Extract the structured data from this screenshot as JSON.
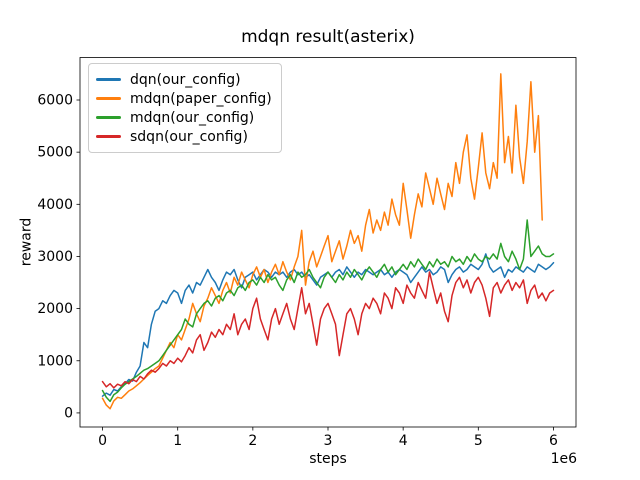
{
  "chart_data": {
    "type": "line",
    "title": "mdqn result(asterix)",
    "xlabel": "steps",
    "ylabel": "reward",
    "x_unit": "1e6",
    "grid": false,
    "legend_position": "upper left",
    "xlim": [
      -0.3,
      6.3
    ],
    "ylim": [
      -270,
      6815
    ],
    "xticks": [
      0,
      1,
      2,
      3,
      4,
      5,
      6
    ],
    "yticks": [
      0,
      1000,
      2000,
      3000,
      4000,
      5000,
      6000
    ],
    "x_start": 0,
    "x_step": 0.05,
    "series": [
      {
        "name": "dqn(our_config)",
        "color": "#1f77b4",
        "values": [
          320,
          380,
          340,
          450,
          420,
          500,
          560,
          640,
          610,
          780,
          900,
          1350,
          1250,
          1700,
          1950,
          2000,
          2150,
          2100,
          2250,
          2350,
          2300,
          2100,
          2350,
          2450,
          2300,
          2500,
          2450,
          2600,
          2750,
          2600,
          2500,
          2350,
          2550,
          2700,
          2650,
          2750,
          2550,
          2400,
          2600,
          2650,
          2700,
          2550,
          2650,
          2750,
          2700,
          2600,
          2700,
          2650,
          2700,
          2600,
          2700,
          2750,
          2650,
          2700,
          2600,
          2650,
          2550,
          2450,
          2600,
          2650,
          2700,
          2600,
          2700,
          2750,
          2650,
          2800,
          2700,
          2600,
          2700,
          2650,
          2750,
          2700,
          2650,
          2700,
          2750,
          2650,
          2700,
          2600,
          2700,
          2750,
          2700,
          2650,
          2500,
          2600,
          2700,
          2800,
          2700,
          2750,
          2650,
          2700,
          2800,
          2750,
          2500,
          2650,
          2750,
          2800,
          2700,
          2750,
          2850,
          2800,
          2750,
          2850,
          3050,
          2800,
          2700,
          2750,
          2800,
          2600,
          2750,
          2700,
          2800,
          2750,
          2700,
          2800,
          2750,
          2700,
          2850,
          2800,
          2750,
          2800,
          2880
        ]
      },
      {
        "name": "mdqn(paper_config)",
        "color": "#ff7f0e",
        "values": [
          280,
          150,
          80,
          230,
          300,
          280,
          350,
          420,
          460,
          520,
          580,
          650,
          720,
          780,
          850,
          900,
          1050,
          1200,
          1350,
          1250,
          1500,
          1400,
          1600,
          1800,
          2100,
          1900,
          1750,
          2050,
          2200,
          2400,
          2250,
          2100,
          2350,
          2500,
          2300,
          2600,
          2450,
          2700,
          2550,
          2400,
          2650,
          2800,
          2600,
          2750,
          2500,
          2700,
          2850,
          2650,
          2900,
          2700,
          2550,
          2800,
          3000,
          3500,
          2450,
          2900,
          3100,
          2800,
          3000,
          3200,
          3400,
          2900,
          3100,
          3300,
          2950,
          3200,
          3500,
          3250,
          3400,
          3100,
          3600,
          3900,
          3450,
          3700,
          3500,
          3850,
          3600,
          4100,
          3800,
          3600,
          4400,
          3900,
          3350,
          3800,
          4200,
          3950,
          4600,
          4300,
          4000,
          4500,
          4200,
          3900,
          4400,
          4150,
          4800,
          4400,
          5000,
          5330,
          4500,
          4100,
          4700,
          5370,
          4600,
          4300,
          4800,
          4500,
          6500,
          4800,
          5300,
          4600,
          5900,
          4900,
          4400,
          5200,
          6350,
          5000,
          5700,
          3700
        ]
      },
      {
        "name": "mdqn(our_config)",
        "color": "#2ca02c",
        "values": [
          430,
          300,
          220,
          350,
          400,
          480,
          550,
          600,
          650,
          700,
          760,
          820,
          850,
          900,
          950,
          1000,
          1100,
          1200,
          1300,
          1400,
          1500,
          1600,
          1800,
          1700,
          1650,
          1900,
          2000,
          2100,
          2150,
          2050,
          2200,
          2250,
          2150,
          2300,
          2350,
          2250,
          2400,
          2450,
          2350,
          2500,
          2550,
          2450,
          2600,
          2500,
          2650,
          2550,
          2600,
          2450,
          2350,
          2550,
          2650,
          2500,
          2700,
          2600,
          2650,
          2750,
          2600,
          2500,
          2400,
          2600,
          2700,
          2600,
          2500,
          2650,
          2550,
          2700,
          2600,
          2750,
          2650,
          2550,
          2700,
          2800,
          2700,
          2600,
          2750,
          2850,
          2700,
          2800,
          2650,
          2750,
          2850,
          2750,
          2900,
          2800,
          2950,
          2850,
          2750,
          2900,
          2800,
          2950,
          2850,
          2900,
          2800,
          3000,
          2900,
          2950,
          2850,
          3000,
          2900,
          3050,
          2950,
          2900,
          3000,
          2950,
          3050,
          2950,
          3250,
          3000,
          2900,
          3100,
          2950,
          2750,
          2950,
          3700,
          3000,
          3100,
          3200,
          3050,
          3000,
          3000,
          3050
        ]
      },
      {
        "name": "sdqn(our_config)",
        "color": "#d62728",
        "values": [
          600,
          500,
          560,
          480,
          550,
          520,
          600,
          560,
          640,
          600,
          700,
          650,
          750,
          820,
          780,
          850,
          950,
          900,
          1000,
          950,
          1050,
          980,
          1100,
          1250,
          1150,
          1400,
          1500,
          1200,
          1350,
          1550,
          1450,
          1600,
          1500,
          1700,
          1600,
          1900,
          1500,
          1700,
          1800,
          1600,
          2000,
          2200,
          1800,
          1600,
          1400,
          1800,
          2000,
          1700,
          1900,
          2100,
          1800,
          1600,
          2000,
          2400,
          1900,
          2100,
          1700,
          1300,
          1800,
          2000,
          2100,
          1900,
          1700,
          1100,
          1500,
          1900,
          2000,
          1800,
          1500,
          1900,
          2100,
          2000,
          2200,
          2100,
          1900,
          2300,
          2200,
          2000,
          2400,
          2300,
          2100,
          2450,
          2300,
          2200,
          2500,
          2350,
          2200,
          2700,
          2400,
          2100,
          2300,
          1950,
          1750,
          2250,
          2500,
          2600,
          2400,
          2550,
          2300,
          2500,
          2600,
          2450,
          2200,
          1850,
          2400,
          2500,
          2300,
          2450,
          2550,
          2350,
          2500,
          2400,
          2550,
          2100,
          2350,
          2450,
          2200,
          2300,
          2150,
          2300,
          2350
        ]
      }
    ]
  }
}
